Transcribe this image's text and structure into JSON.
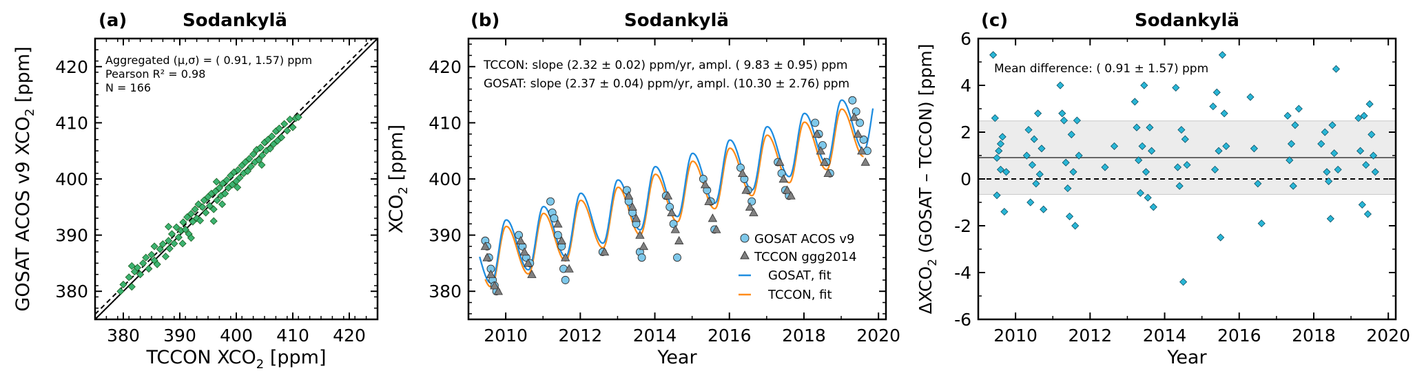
{
  "chart_data": [
    {
      "type": "scatter",
      "panel_label": "(a)",
      "title": "Sodankylä",
      "xlabel_main": "TCCON XCO",
      "xlabel_sub": "2",
      "xlabel_unit": " [ppm]",
      "ylabel_main": "GOSAT ACOS v9 XCO",
      "ylabel_sub": "2",
      "ylabel_unit": " [ppm]",
      "xlim": [
        375,
        425
      ],
      "ylim": [
        375,
        425
      ],
      "xticks": [
        "380",
        "390",
        "400",
        "410",
        "420"
      ],
      "yticks": [
        "380",
        "390",
        "400",
        "410",
        "420"
      ],
      "tick_values": [
        380,
        390,
        400,
        410,
        420
      ],
      "annotations": [
        "Aggregated (μ,σ) = ( 0.91, 1.57) ppm",
        "Pearson R² = 0.98",
        "N =  166"
      ],
      "lines": [
        {
          "name": "1:1 line",
          "style": "solid",
          "x": [
            375,
            425
          ],
          "y": [
            375,
            425
          ]
        },
        {
          "name": "offset line",
          "style": "dashed",
          "x": [
            375,
            425
          ],
          "y": [
            375.91,
            425.91
          ]
        }
      ],
      "marker_color": "#3cb371",
      "series": [
        {
          "name": "GOSAT vs TCCON",
          "points": [
            [
              379.5,
              380
            ],
            [
              380,
              381.2
            ],
            [
              381,
              382.5
            ],
            [
              381.5,
              380.8
            ],
            [
              382,
              383.5
            ],
            [
              382.5,
              384.2
            ],
            [
              383,
              383
            ],
            [
              383.5,
              385
            ],
            [
              384,
              386
            ],
            [
              384.5,
              384
            ],
            [
              385,
              386.5
            ],
            [
              385.5,
              385.5
            ],
            [
              386,
              384.8
            ],
            [
              386.5,
              387.5
            ],
            [
              387,
              388.4
            ],
            [
              387.5,
              386.2
            ],
            [
              388,
              389
            ],
            [
              388.2,
              387.6
            ],
            [
              388.6,
              390.2
            ],
            [
              389,
              388.5
            ],
            [
              389.4,
              391.4
            ],
            [
              389.8,
              389.6
            ],
            [
              390.2,
              390.8
            ],
            [
              390.6,
              392.3
            ],
            [
              391,
              391
            ],
            [
              391.3,
              393.2
            ],
            [
              391.6,
              390.2
            ],
            [
              392,
              393.8
            ],
            [
              392.3,
              392.4
            ],
            [
              392.7,
              394.6
            ],
            [
              393,
              393
            ],
            [
              393.3,
              395.5
            ],
            [
              393.6,
              392.6
            ],
            [
              394,
              395
            ],
            [
              394.3,
              396.2
            ],
            [
              394.6,
              394
            ],
            [
              395,
              396.8
            ],
            [
              395.3,
              395.2
            ],
            [
              395.6,
              397.4
            ],
            [
              396,
              394.6
            ],
            [
              396.3,
              397.8
            ],
            [
              396.6,
              396.2
            ],
            [
              397,
              398.4
            ],
            [
              397.3,
              397
            ],
            [
              397.6,
              399.2
            ],
            [
              398,
              397.4
            ],
            [
              398.3,
              399.8
            ],
            [
              398.6,
              398.4
            ],
            [
              399,
              400.6
            ],
            [
              399.3,
              399
            ],
            [
              399.6,
              401.2
            ],
            [
              400,
              399.6
            ],
            [
              400.3,
              401.6
            ],
            [
              400.6,
              400.2
            ],
            [
              401,
              402.4
            ],
            [
              401.3,
              401
            ],
            [
              401.6,
              403
            ],
            [
              402,
              401.4
            ],
            [
              402.3,
              403.6
            ],
            [
              402.6,
              402.2
            ],
            [
              403,
              404.4
            ],
            [
              403.3,
              403
            ],
            [
              403.6,
              405.2
            ],
            [
              404,
              403.4
            ],
            [
              404.3,
              405.6
            ],
            [
              404.6,
              404.2
            ],
            [
              405,
              406.5
            ],
            [
              405.3,
              405
            ],
            [
              405.6,
              407
            ],
            [
              406,
              405.4
            ],
            [
              406.3,
              407.6
            ],
            [
              406.6,
              406.2
            ],
            [
              407,
              408.5
            ],
            [
              407.3,
              406.8
            ],
            [
              407.6,
              409
            ],
            [
              408,
              407.4
            ],
            [
              408.5,
              409.8
            ],
            [
              409,
              408.6
            ],
            [
              409.5,
              410.6
            ],
            [
              410,
              409.2
            ],
            [
              410.5,
              410.8
            ],
            [
              411,
              411
            ],
            [
              400.2,
              398.5
            ],
            [
              396.5,
              399.5
            ],
            [
              390.5,
              388.5
            ],
            [
              385.5,
              388
            ],
            [
              392,
              389.5
            ],
            [
              404.5,
              402.5
            ],
            [
              381.5,
              384.5
            ],
            [
              388,
              391.5
            ],
            [
              396,
              392.5
            ],
            [
              397.5,
              395.5
            ]
          ]
        }
      ]
    },
    {
      "type": "line",
      "panel_label": "(b)",
      "title": "Sodankylä",
      "xlabel": "Year",
      "ylabel_main": "XCO",
      "ylabel_sub": "2",
      "ylabel_unit": " [ppm]",
      "xlim": [
        2009,
        2020.2
      ],
      "ylim": [
        375,
        425
      ],
      "xticks": [
        "2010",
        "2012",
        "2014",
        "2016",
        "2018",
        "2020"
      ],
      "xtick_values": [
        2010,
        2012,
        2014,
        2016,
        2018,
        2020
      ],
      "yticks": [
        "380",
        "390",
        "400",
        "410",
        "420"
      ],
      "ytick_values": [
        380,
        390,
        400,
        410,
        420
      ],
      "annotations": [
        "TCCON: slope (2.32 ± 0.02) ppm/yr, ampl. ( 9.83 ± 0.95) ppm",
        "GOSAT: slope (2.37 ± 0.04) ppm/yr, ampl. (10.30 ± 2.76) ppm"
      ],
      "legend_position": "lower-right",
      "legend": [
        "GOSAT ACOS v9",
        "TCCON ggg2014",
        "GOSAT, fit",
        "TCCON, fit"
      ],
      "fit_params": {
        "gosat": {
          "base": 386.35,
          "slope": 2.37,
          "amplitude": 10.3,
          "start": 2009.3,
          "end": 2019.85,
          "color": "#1f8de0"
        },
        "tccon": {
          "base": 385.45,
          "slope": 2.32,
          "amplitude": 9.83,
          "start": 2009.45,
          "end": 2019.6,
          "color": "#ff8c1a"
        }
      },
      "series": [
        {
          "name": "GOSAT ACOS v9",
          "marker": "circle",
          "color": "#7ec8ea",
          "x": [
            2009.45,
            2009.5,
            2009.55,
            2009.6,
            2009.65,
            2009.7,
            2009.75,
            2010.35,
            2010.45,
            2010.55,
            2010.65,
            2011.2,
            2011.25,
            2011.3,
            2011.4,
            2011.5,
            2011.55,
            2011.6,
            2012.6,
            2013.25,
            2013.3,
            2013.4,
            2013.5,
            2013.6,
            2013.65,
            2014.3,
            2014.4,
            2014.5,
            2014.6,
            2015.3,
            2015.4,
            2015.5,
            2015.6,
            2016.3,
            2016.4,
            2016.5,
            2016.6,
            2017.3,
            2017.4,
            2017.5,
            2017.6,
            2018.3,
            2018.4,
            2018.5,
            2018.6,
            2018.7,
            2019.3,
            2019.4,
            2019.5,
            2019.6,
            2019.7
          ],
          "y": [
            389,
            388,
            386,
            384,
            382,
            381,
            380,
            390,
            388,
            386,
            385,
            396,
            394,
            393,
            390,
            388,
            384,
            382,
            387,
            398,
            396,
            394,
            392,
            387,
            386,
            397,
            395,
            392,
            386,
            400,
            398,
            396,
            391,
            402,
            400,
            398,
            396,
            403,
            401,
            398,
            397,
            410,
            408,
            406,
            403,
            401,
            414,
            412,
            410,
            407,
            405
          ]
        },
        {
          "name": "TCCON ggg2014",
          "marker": "triangle",
          "color": "#808080",
          "x": [
            2009.45,
            2009.5,
            2009.6,
            2009.7,
            2009.8,
            2010.4,
            2010.5,
            2010.6,
            2010.7,
            2011.4,
            2011.5,
            2011.6,
            2011.7,
            2012.65,
            2013.3,
            2013.4,
            2013.5,
            2013.6,
            2013.7,
            2014.35,
            2014.45,
            2014.55,
            2014.65,
            2015.35,
            2015.45,
            2015.55,
            2015.65,
            2016.35,
            2016.45,
            2016.55,
            2016.65,
            2017.35,
            2017.45,
            2017.55,
            2017.65,
            2018.35,
            2018.45,
            2018.55,
            2018.65,
            2019.35,
            2019.45,
            2019.55,
            2019.65
          ],
          "y": [
            388,
            386,
            383,
            381,
            380,
            389,
            387,
            385,
            383,
            392,
            389,
            386,
            384,
            387,
            397,
            395,
            393,
            390,
            388,
            397,
            394,
            391,
            389,
            399,
            396,
            393,
            391,
            401,
            398,
            395,
            394,
            403,
            400,
            398,
            397,
            408,
            405,
            403,
            401,
            411,
            408,
            405,
            403
          ]
        }
      ]
    },
    {
      "type": "scatter",
      "panel_label": "(c)",
      "title": "Sodankylä",
      "xlabel": "Year",
      "ylabel_pre": "ΔXCO",
      "ylabel_sub": "2",
      "ylabel_post": " (GOSAT – TCCON) [ppm]",
      "xlim": [
        2009,
        2020.2
      ],
      "ylim": [
        -6,
        6
      ],
      "xticks": [
        "2010",
        "2012",
        "2014",
        "2016",
        "2018",
        "2020"
      ],
      "xtick_values": [
        2010,
        2012,
        2014,
        2016,
        2018,
        2020
      ],
      "yticks": [
        "6",
        "4",
        "2",
        "0",
        "-2",
        "-4",
        "-6"
      ],
      "ytick_values": [
        6,
        4,
        2,
        0,
        -2,
        -4,
        -6
      ],
      "annotation": "Mean difference: ( 0.91 ± 1.57) ppm",
      "mean": 0.91,
      "std_band": [
        -0.66,
        2.48
      ],
      "zero_line": 0,
      "marker_color": "#29b6d6",
      "series": [
        {
          "name": "GOSAT - TCCON",
          "x": [
            2009.4,
            2009.45,
            2009.5,
            2009.55,
            2009.6,
            2009.65,
            2009.7,
            2009.75,
            2009.5,
            2009.6,
            2010.3,
            2010.35,
            2010.4,
            2010.45,
            2010.5,
            2010.55,
            2010.6,
            2010.65,
            2010.7,
            2010.75,
            2011.2,
            2011.25,
            2011.3,
            2011.35,
            2011.4,
            2011.45,
            2011.5,
            2011.55,
            2011.6,
            2011.65,
            2011.7,
            2012.4,
            2012.65,
            2013.2,
            2013.25,
            2013.3,
            2013.35,
            2013.4,
            2013.45,
            2013.5,
            2013.55,
            2013.6,
            2013.65,
            2013.7,
            2014.3,
            2014.35,
            2014.4,
            2014.45,
            2014.5,
            2014.55,
            2014.6,
            2015.3,
            2015.35,
            2015.4,
            2015.45,
            2015.5,
            2015.55,
            2015.6,
            2015.65,
            2016.3,
            2016.4,
            2016.5,
            2016.6,
            2017.3,
            2017.35,
            2017.4,
            2017.45,
            2017.5,
            2017.6,
            2018.2,
            2018.3,
            2018.35,
            2018.4,
            2018.45,
            2018.5,
            2018.55,
            2018.6,
            2018.65,
            2019.2,
            2019.25,
            2019.3,
            2019.35,
            2019.4,
            2019.45,
            2019.5,
            2019.55,
            2019.6,
            2019.65
          ],
          "y": [
            5.3,
            2.6,
            -0.7,
            1.2,
            0.4,
            1.8,
            -1.4,
            0.3,
            0.9,
            1.5,
            1.0,
            2.1,
            -1.0,
            0.6,
            1.7,
            -0.2,
            2.8,
            0.2,
            1.3,
            -1.3,
            4.0,
            2.8,
            2.5,
            0.7,
            -0.4,
            -1.6,
            1.9,
            0.3,
            -2.0,
            2.5,
            1.0,
            0.5,
            1.4,
            3.3,
            2.2,
            0.8,
            -0.6,
            1.4,
            4.0,
            0.3,
            -0.8,
            2.2,
            1.2,
            -1.2,
            3.9,
            0.5,
            -0.3,
            2.1,
            -4.4,
            1.7,
            0.6,
            3.1,
            0.4,
            3.7,
            1.2,
            -2.5,
            5.3,
            2.8,
            1.4,
            3.5,
            1.3,
            -0.2,
            -1.9,
            2.7,
            0.8,
            1.5,
            -0.3,
            2.3,
            3.0,
            1.5,
            2.0,
            0.3,
            -0.1,
            -1.7,
            2.3,
            1.1,
            4.7,
            0.4,
            2.6,
            1.2,
            -1.1,
            2.7,
            0.6,
            -1.5,
            3.2,
            1.9,
            1.0,
            0.3
          ]
        }
      ]
    }
  ]
}
